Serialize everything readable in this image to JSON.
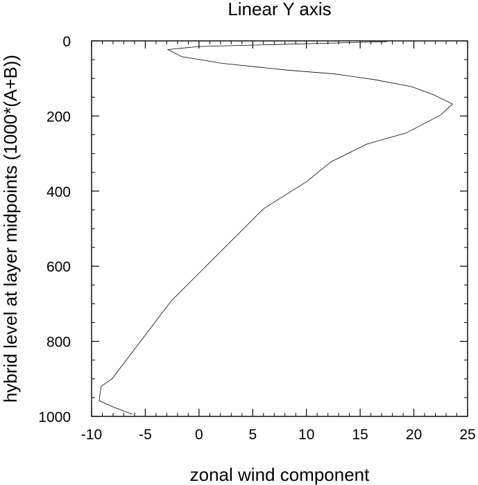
{
  "chart_data": {
    "type": "line",
    "title": "Linear Y axis",
    "xlabel": "zonal wind component",
    "ylabel": "hybrid level at layer midpoints (1000*(A+B))",
    "xlim": [
      -10,
      25
    ],
    "ylim": [
      1000,
      0
    ],
    "xticks": [
      -10,
      -5,
      0,
      5,
      10,
      15,
      20,
      25
    ],
    "xtick_labels": [
      "-10",
      "-5",
      "0",
      "5",
      "10",
      "15",
      "20",
      "25"
    ],
    "yticks": [
      0,
      200,
      400,
      600,
      800,
      1000
    ],
    "ytick_labels": [
      "0",
      "200",
      "400",
      "600",
      "800",
      "1000"
    ],
    "grid": false,
    "line_color": "#000000",
    "series": [
      {
        "x": [
          17.5,
          0.0,
          -2.9,
          -1.6,
          2.2,
          8.3,
          12.6,
          16.3,
          19.8,
          21.8,
          23.6,
          22.5,
          19.3,
          15.6,
          12.3,
          10.0,
          6.0,
          0.3,
          -2.6,
          -8.1,
          -9.1,
          -9.3,
          -8.0,
          -6.2
        ],
        "y": [
          2,
          15,
          23,
          42,
          60,
          78,
          88,
          103,
          122,
          143,
          168,
          197,
          245,
          275,
          322,
          375,
          447,
          610,
          693,
          900,
          920,
          958,
          975,
          994
        ]
      }
    ]
  }
}
